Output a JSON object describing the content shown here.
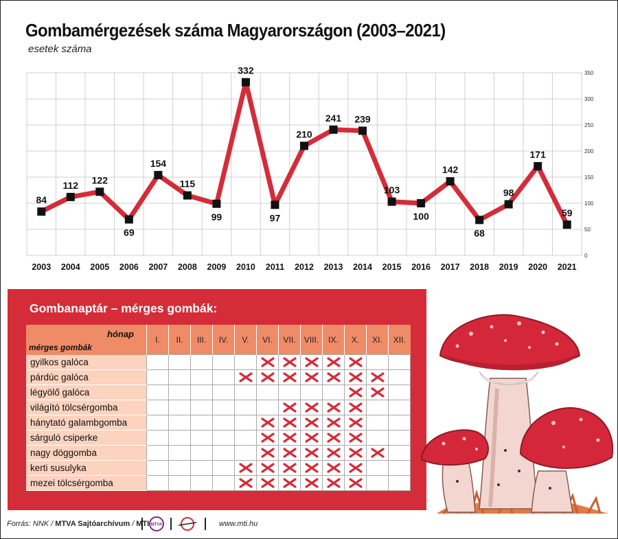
{
  "title": "Gombamérgezések száma Magyarországon (2003–2021)",
  "subtitle": "esetek száma",
  "chart_data": {
    "type": "line",
    "title": "Gombamérgezések száma Magyarországon (2003–2021)",
    "ylabel": "esetek száma",
    "x": [
      "2003",
      "2004",
      "2005",
      "2006",
      "2007",
      "2008",
      "2009",
      "2010",
      "2011",
      "2012",
      "2013",
      "2014",
      "2015",
      "2016",
      "2017",
      "2018",
      "2019",
      "2020",
      "2021"
    ],
    "values": [
      84,
      112,
      122,
      69,
      154,
      115,
      99,
      332,
      97,
      210,
      241,
      239,
      103,
      100,
      142,
      68,
      98,
      171,
      59
    ],
    "ylim": [
      0,
      350
    ],
    "yticks": [
      0,
      50,
      100,
      150,
      200,
      250,
      300,
      350
    ],
    "grid": true,
    "line_color": "#d42c39",
    "marker_color": "#111111"
  },
  "calendar": {
    "title": "Gombanaptár – mérges gombák:",
    "month_header": "hónap",
    "species_header": "mérges gombák",
    "months": [
      "I.",
      "II.",
      "III.",
      "IV.",
      "V.",
      "VI.",
      "VII.",
      "VIII.",
      "IX.",
      "X.",
      "XI.",
      "XII."
    ],
    "rows": [
      {
        "name": "gyilkos galóca",
        "months": [
          6,
          7,
          8,
          9,
          10
        ]
      },
      {
        "name": "párdúc galóca",
        "months": [
          5,
          6,
          7,
          8,
          9,
          10,
          11
        ]
      },
      {
        "name": "légyölő galóca",
        "months": [
          10,
          11
        ]
      },
      {
        "name": "világító tölcsérgomba",
        "months": [
          7,
          8,
          9,
          10
        ]
      },
      {
        "name": "hánytató galambgomba",
        "months": [
          6,
          7,
          8,
          9,
          10
        ]
      },
      {
        "name": "sárguló csiperke",
        "months": [
          6,
          7,
          8,
          9,
          10
        ]
      },
      {
        "name": "nagy döggomba",
        "months": [
          6,
          7,
          8,
          9,
          10,
          11
        ]
      },
      {
        "name": "kerti susulyka",
        "months": [
          5,
          6,
          7,
          8,
          9,
          10
        ]
      },
      {
        "name": "mezei tölcsérgomba",
        "months": [
          5,
          6,
          7,
          8,
          9,
          10
        ]
      }
    ],
    "colors": {
      "panel": "#d42c39",
      "header": "#ef8b66",
      "label": "#fbd3bf",
      "mark": "#d42c39"
    }
  },
  "footer": {
    "source_prefix": "Forrás: NNK / ",
    "source_archive": "MTVA Sajtóarchívum",
    "source_sep": " / ",
    "source_mti": "MTI",
    "logo1": "MTVA",
    "website": "www.mti.hu"
  }
}
